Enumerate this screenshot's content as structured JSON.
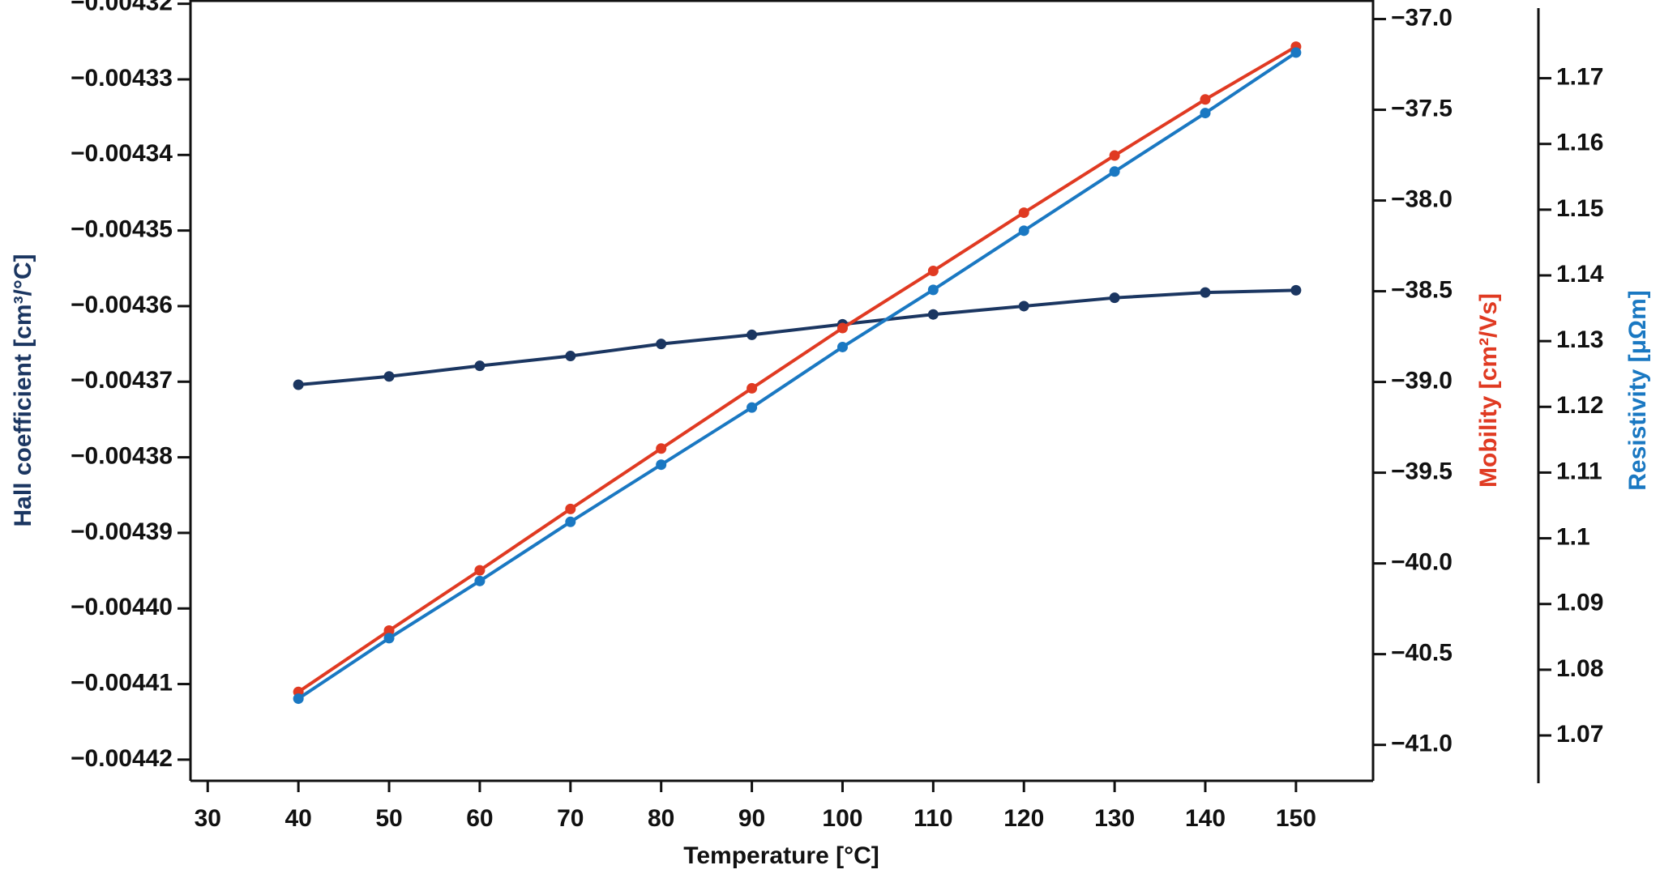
{
  "chart_data": {
    "type": "line",
    "xlabel": "Temperature [°C]",
    "ylabel": "Hall coefficient [cm³/°C]",
    "y2label": "Mobility [cm²/Vs]",
    "y3label": "Resistivity [μΩm]",
    "x": [
      40,
      50,
      60,
      70,
      80,
      90,
      100,
      110,
      120,
      130,
      140,
      150
    ],
    "xlim": [
      28.1,
      158.5
    ],
    "xticks": [
      30,
      40,
      50,
      60,
      70,
      80,
      90,
      100,
      110,
      120,
      130,
      140,
      150
    ],
    "ylim": [
      -0.0044228,
      -0.0043195
    ],
    "yticks": [
      {
        "value": -0.00432,
        "label": "−0.00432"
      },
      {
        "value": -0.00433,
        "label": "−0.00433"
      },
      {
        "value": -0.00434,
        "label": "−0.00434"
      },
      {
        "value": -0.00435,
        "label": "−0.00435"
      },
      {
        "value": -0.00436,
        "label": "−0.00436"
      },
      {
        "value": -0.00437,
        "label": "−0.00437"
      },
      {
        "value": -0.00438,
        "label": "−0.00438"
      },
      {
        "value": -0.00439,
        "label": "−0.00439"
      },
      {
        "value": -0.0044,
        "label": "−0.00440"
      },
      {
        "value": -0.00441,
        "label": "−0.00441"
      },
      {
        "value": -0.00442,
        "label": "−0.00442"
      }
    ],
    "y2lim": [
      -41.198,
      -36.895
    ],
    "y2ticks": [
      {
        "value": -37.0,
        "label": "−37.0"
      },
      {
        "value": -37.5,
        "label": "−37.5"
      },
      {
        "value": -38.0,
        "label": "−38.0"
      },
      {
        "value": -38.5,
        "label": "−38.5"
      },
      {
        "value": -39.0,
        "label": "−39.0"
      },
      {
        "value": -39.5,
        "label": "−39.5"
      },
      {
        "value": -40.0,
        "label": "−40.0"
      },
      {
        "value": -40.5,
        "label": "−40.5"
      },
      {
        "value": -41.0,
        "label": "−41.0"
      }
    ],
    "y3lim": [
      1.0631,
      1.1819
    ],
    "y3ticks": [
      1.07,
      1.08,
      1.09,
      1.1,
      1.11,
      1.12,
      1.13,
      1.14,
      1.15,
      1.16,
      1.17
    ],
    "series": [
      {
        "color": "#1b3661",
        "axis": "y",
        "values": [
          -0.0043704,
          -0.0043693,
          -0.0043679,
          -0.0043666,
          -0.004365,
          -0.0043638,
          -0.0043624,
          -0.0043611,
          -0.00436,
          -0.0043589,
          -0.0043582,
          -0.0043579
        ]
      },
      {
        "color": "#e03a22",
        "axis": "y2",
        "values": [
          -40.708,
          -40.37,
          -40.038,
          -39.7,
          -39.367,
          -39.035,
          -38.703,
          -38.388,
          -38.067,
          -37.752,
          -37.443,
          -37.152
        ]
      },
      {
        "color": "#1a78c2",
        "axis": "y3",
        "values": [
          1.0756,
          1.0848,
          1.0935,
          1.1025,
          1.1112,
          1.1199,
          1.1291,
          1.1378,
          1.1468,
          1.1558,
          1.1647,
          1.1739
        ]
      }
    ]
  }
}
